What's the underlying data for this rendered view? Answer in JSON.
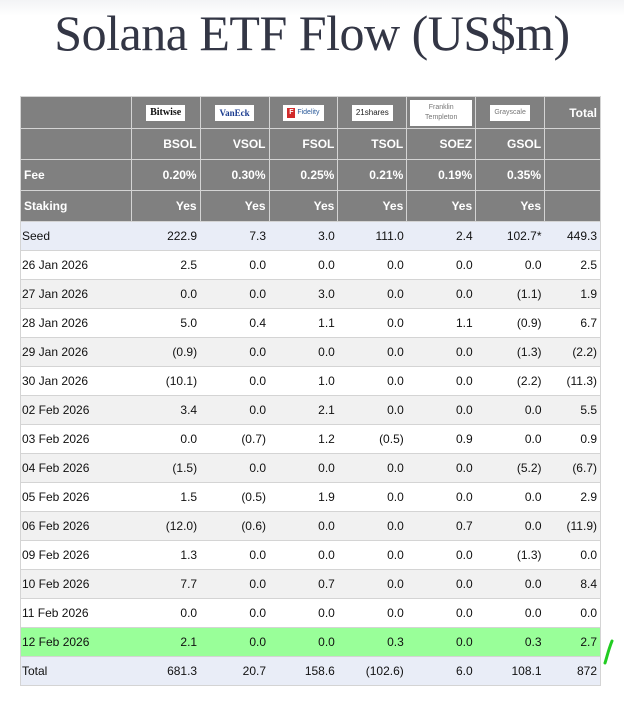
{
  "title": "Solana ETF Flow (US$m)",
  "colors": {
    "header_bg": "#808080",
    "seed_total_bg": "#e9edf7",
    "alt_row_bg": "#f1f1f1",
    "highlight_row_bg": "#99ff99",
    "negative_text": "#e8141f",
    "title_text": "#333645",
    "check_mark": "#22cc22"
  },
  "issuers": [
    {
      "logo": "Bitwise",
      "ticker": "BSOL",
      "fee": "0.20%",
      "staking": "Yes"
    },
    {
      "logo": "VanEck",
      "ticker": "VSOL",
      "fee": "0.30%",
      "staking": "Yes"
    },
    {
      "logo": "Fidelity",
      "ticker": "FSOL",
      "fee": "0.25%",
      "staking": "Yes"
    },
    {
      "logo": "21shares",
      "ticker": "TSOL",
      "fee": "0.21%",
      "staking": "Yes"
    },
    {
      "logo": "Franklin Templeton",
      "ticker": "SOEZ",
      "fee": "0.19%",
      "staking": "Yes"
    },
    {
      "logo": "Grayscale",
      "ticker": "GSOL",
      "fee": "0.35%",
      "staking": "Yes"
    }
  ],
  "header": {
    "total_label": "Total",
    "fee_label": "Fee",
    "staking_label": "Staking"
  },
  "rows": [
    {
      "label": "Seed",
      "values": [
        "222.9",
        "7.3",
        "3.0",
        "111.0",
        "2.4",
        "102.7*",
        "449.3"
      ]
    },
    {
      "label": "26 Jan 2026",
      "values": [
        "2.5",
        "0.0",
        "0.0",
        "0.0",
        "0.0",
        "0.0",
        "2.5"
      ]
    },
    {
      "label": "27 Jan 2026",
      "values": [
        "0.0",
        "0.0",
        "3.0",
        "0.0",
        "0.0",
        "(1.1)",
        "1.9"
      ]
    },
    {
      "label": "28 Jan 2026",
      "values": [
        "5.0",
        "0.4",
        "1.1",
        "0.0",
        "1.1",
        "(0.9)",
        "6.7"
      ]
    },
    {
      "label": "29 Jan 2026",
      "values": [
        "(0.9)",
        "0.0",
        "0.0",
        "0.0",
        "0.0",
        "(1.3)",
        "(2.2)"
      ]
    },
    {
      "label": "30 Jan 2026",
      "values": [
        "(10.1)",
        "0.0",
        "1.0",
        "0.0",
        "0.0",
        "(2.2)",
        "(11.3)"
      ]
    },
    {
      "label": "02 Feb 2026",
      "values": [
        "3.4",
        "0.0",
        "2.1",
        "0.0",
        "0.0",
        "0.0",
        "5.5"
      ]
    },
    {
      "label": "03 Feb 2026",
      "values": [
        "0.0",
        "(0.7)",
        "1.2",
        "(0.5)",
        "0.9",
        "0.0",
        "0.9"
      ]
    },
    {
      "label": "04 Feb 2026",
      "values": [
        "(1.5)",
        "0.0",
        "0.0",
        "0.0",
        "0.0",
        "(5.2)",
        "(6.7)"
      ]
    },
    {
      "label": "05 Feb 2026",
      "values": [
        "1.5",
        "(0.5)",
        "1.9",
        "0.0",
        "0.0",
        "0.0",
        "2.9"
      ]
    },
    {
      "label": "06 Feb 2026",
      "values": [
        "(12.0)",
        "(0.6)",
        "0.0",
        "0.0",
        "0.7",
        "0.0",
        "(11.9)"
      ]
    },
    {
      "label": "09 Feb 2026",
      "values": [
        "1.3",
        "0.0",
        "0.0",
        "0.0",
        "0.0",
        "(1.3)",
        "0.0"
      ]
    },
    {
      "label": "10 Feb 2026",
      "values": [
        "7.7",
        "0.0",
        "0.7",
        "0.0",
        "0.0",
        "0.0",
        "8.4"
      ]
    },
    {
      "label": "11 Feb 2026",
      "values": [
        "0.0",
        "0.0",
        "0.0",
        "0.0",
        "0.0",
        "0.0",
        "0.0"
      ]
    },
    {
      "label": "12 Feb 2026",
      "values": [
        "2.1",
        "0.0",
        "0.0",
        "0.3",
        "0.0",
        "0.3",
        "2.7"
      ],
      "highlighted": true
    },
    {
      "label": "Total",
      "values": [
        "681.3",
        "20.7",
        "158.6",
        "(102.6)",
        "6.0",
        "108.1",
        "872"
      ]
    }
  ]
}
